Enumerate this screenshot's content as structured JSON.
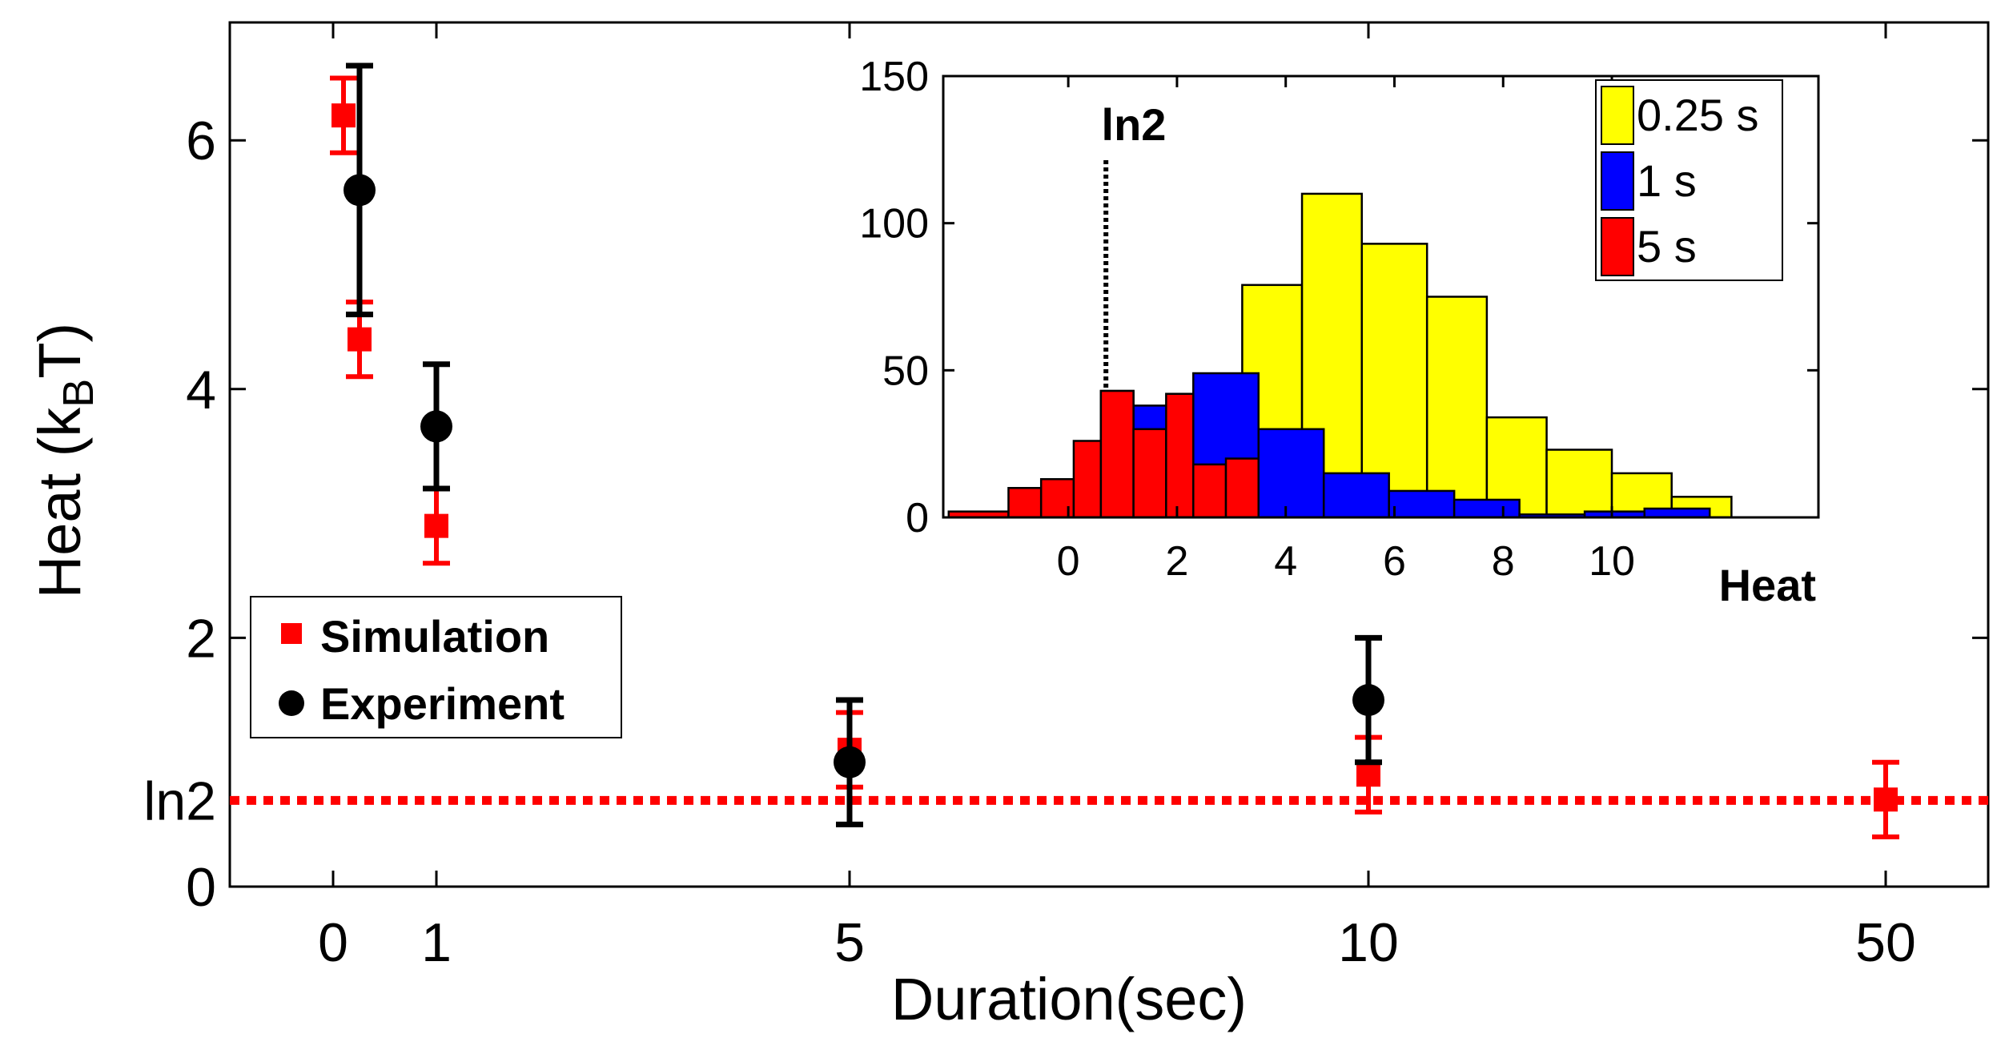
{
  "chart_data": [
    {
      "type": "scatter",
      "title": "",
      "xlabel": "Duration(sec)",
      "ylabel_main": "Heat (k",
      "ylabel_sub": "B",
      "ylabel_end": "T)",
      "x_ticks": [
        "0",
        "1",
        "5",
        "10",
        "50"
      ],
      "y_ticks": [
        "0",
        "2",
        "4",
        "6"
      ],
      "ylim": [
        0,
        7
      ],
      "reference_line": {
        "label": "ln2",
        "value": 0.693,
        "color": "#ff0000",
        "style": "dotted"
      },
      "legend": {
        "position": "left",
        "entries": [
          "Simulation",
          "Experiment"
        ]
      },
      "series": [
        {
          "name": "Simulation",
          "marker": "square",
          "color": "#ff0000",
          "points": [
            {
              "x": "0",
              "y": 6.2,
              "yerr_low": 5.9,
              "yerr_high": 6.5
            },
            {
              "x": "0",
              "y": 4.4,
              "yerr_low": 4.1,
              "yerr_high": 4.7
            },
            {
              "x": "1",
              "y": 2.9,
              "yerr_low": 2.6,
              "yerr_high": 3.2
            },
            {
              "x": "5",
              "y": 1.1,
              "yerr_low": 0.8,
              "yerr_high": 1.4
            },
            {
              "x": "10",
              "y": 0.9,
              "yerr_low": 0.6,
              "yerr_high": 1.2
            },
            {
              "x": "50",
              "y": 0.7,
              "yerr_low": 0.4,
              "yerr_high": 1.0
            }
          ]
        },
        {
          "name": "Experiment",
          "marker": "circle",
          "color": "#000000",
          "points": [
            {
              "x": "0.25",
              "y": 5.6,
              "yerr_low": 4.6,
              "yerr_high": 6.6
            },
            {
              "x": "1",
              "y": 3.7,
              "yerr_low": 3.2,
              "yerr_high": 4.2
            },
            {
              "x": "5",
              "y": 1.0,
              "yerr_low": 0.5,
              "yerr_high": 1.5
            },
            {
              "x": "10",
              "y": 1.5,
              "yerr_low": 1.0,
              "yerr_high": 2.0
            }
          ]
        }
      ]
    },
    {
      "type": "bar",
      "title": "",
      "xlabel": "Heat",
      "marker_label": "ln2",
      "marker_value": 0.693,
      "x_ticks": [
        "0",
        "2",
        "4",
        "6",
        "8",
        "10"
      ],
      "y_ticks": [
        "0",
        "50",
        "100",
        "150"
      ],
      "xlim": [
        -2.3,
        13.8
      ],
      "ylim": [
        0,
        150
      ],
      "legend": {
        "position": "top-right"
      },
      "series": [
        {
          "name": "0.25 s",
          "color": "#ffff00",
          "bins": [
            {
              "x0": 3.2,
              "x1": 4.3,
              "count": 79
            },
            {
              "x0": 4.3,
              "x1": 5.4,
              "count": 110
            },
            {
              "x0": 5.4,
              "x1": 6.6,
              "count": 93
            },
            {
              "x0": 6.6,
              "x1": 7.7,
              "count": 75
            },
            {
              "x0": 7.7,
              "x1": 8.8,
              "count": 34
            },
            {
              "x0": 8.8,
              "x1": 10.0,
              "count": 23
            },
            {
              "x0": 10.0,
              "x1": 11.1,
              "count": 15
            },
            {
              "x0": 11.1,
              "x1": 12.2,
              "count": 7
            }
          ]
        },
        {
          "name": "1 s",
          "color": "#0000ff",
          "bins": [
            {
              "x0": 0.6,
              "x1": 1.2,
              "count": 43
            },
            {
              "x0": 1.2,
              "x1": 2.3,
              "count": 38
            },
            {
              "x0": 2.3,
              "x1": 3.5,
              "count": 49
            },
            {
              "x0": 3.5,
              "x1": 4.7,
              "count": 30
            },
            {
              "x0": 4.7,
              "x1": 5.9,
              "count": 15
            },
            {
              "x0": 5.9,
              "x1": 7.1,
              "count": 9
            },
            {
              "x0": 7.1,
              "x1": 8.3,
              "count": 6
            },
            {
              "x0": 8.3,
              "x1": 9.5,
              "count": 1
            },
            {
              "x0": 9.5,
              "x1": 10.6,
              "count": 2
            },
            {
              "x0": 10.6,
              "x1": 11.8,
              "count": 3
            }
          ]
        },
        {
          "name": "5 s",
          "color": "#ff0000",
          "bins": [
            {
              "x0": -2.2,
              "x1": -1.1,
              "count": 2
            },
            {
              "x0": -1.1,
              "x1": -0.5,
              "count": 10
            },
            {
              "x0": -0.5,
              "x1": 0.1,
              "count": 13
            },
            {
              "x0": 0.1,
              "x1": 0.6,
              "count": 26
            },
            {
              "x0": 0.6,
              "x1": 1.2,
              "count": 43
            },
            {
              "x0": 1.2,
              "x1": 1.8,
              "count": 30
            },
            {
              "x0": 1.8,
              "x1": 2.3,
              "count": 42
            },
            {
              "x0": 2.3,
              "x1": 2.9,
              "count": 18
            },
            {
              "x0": 2.9,
              "x1": 3.5,
              "count": 20
            }
          ]
        }
      ]
    }
  ]
}
